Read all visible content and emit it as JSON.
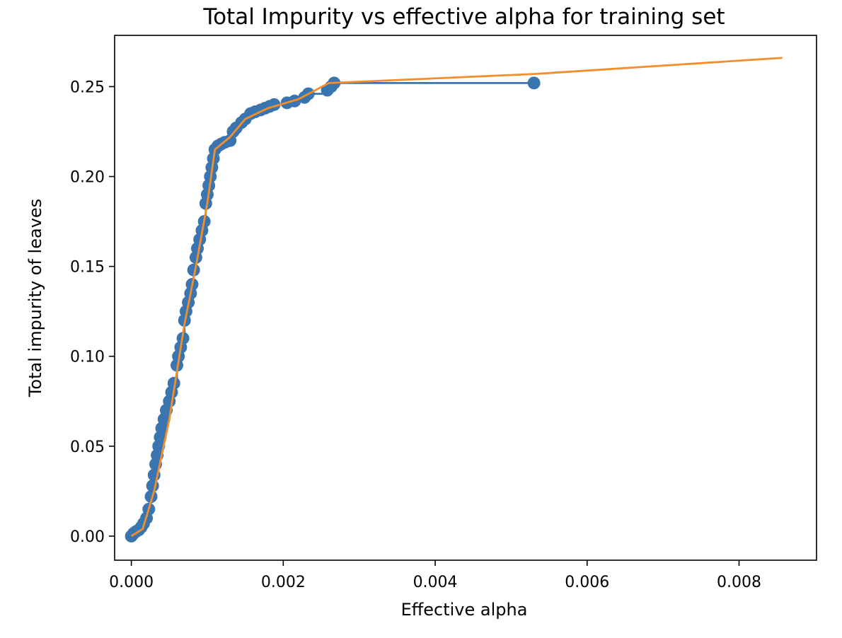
{
  "chart_data": {
    "type": "line",
    "title": "Total Impurity vs effective alpha for training set",
    "xlabel": "Effective alpha",
    "ylabel": "Total impurity of leaves",
    "xlim": [
      -0.00022,
      0.00902
    ],
    "ylim": [
      -0.0134,
      0.2785
    ],
    "grid": false,
    "legend": "none",
    "x_ticks": [
      0.0,
      0.002,
      0.004,
      0.006,
      0.008
    ],
    "x_tick_labels": [
      "0.000",
      "0.002",
      "0.004",
      "0.006",
      "0.008"
    ],
    "y_ticks": [
      0.0,
      0.05,
      0.1,
      0.15,
      0.2,
      0.25
    ],
    "y_tick_labels": [
      "0.00",
      "0.05",
      "0.10",
      "0.15",
      "0.20",
      "0.25"
    ],
    "series": [
      {
        "marker": "o",
        "drawstyle": "steps-post",
        "color": "#3a75b0",
        "x": [
          0.0,
          3e-05,
          6e-05,
          0.0001,
          0.00013,
          0.00016,
          0.0002,
          0.00023,
          0.00026,
          0.00028,
          0.0003,
          0.00032,
          0.00034,
          0.00036,
          0.00038,
          0.0004,
          0.00043,
          0.00046,
          0.0005,
          0.00053,
          0.00056,
          0.0006,
          0.00062,
          0.00065,
          0.00068,
          0.0007,
          0.00072,
          0.00075,
          0.00078,
          0.0008,
          0.00082,
          0.00085,
          0.00087,
          0.0009,
          0.00093,
          0.00096,
          0.00098,
          0.001,
          0.00102,
          0.00104,
          0.00106,
          0.00108,
          0.0011,
          0.00114,
          0.00118,
          0.00123,
          0.0013,
          0.00134,
          0.00138,
          0.00145,
          0.0015,
          0.00157,
          0.00163,
          0.0017,
          0.00176,
          0.00182,
          0.00188,
          0.00205,
          0.00215,
          0.00228,
          0.00233,
          0.00258,
          0.00263,
          0.00267,
          0.0053
        ],
        "y": [
          0.0,
          0.0015,
          0.0025,
          0.0035,
          0.005,
          0.007,
          0.01,
          0.015,
          0.022,
          0.028,
          0.034,
          0.04,
          0.045,
          0.05,
          0.055,
          0.06,
          0.065,
          0.07,
          0.075,
          0.08,
          0.085,
          0.095,
          0.1,
          0.105,
          0.11,
          0.12,
          0.125,
          0.13,
          0.135,
          0.14,
          0.148,
          0.155,
          0.16,
          0.165,
          0.17,
          0.175,
          0.185,
          0.19,
          0.195,
          0.2,
          0.205,
          0.21,
          0.215,
          0.217,
          0.218,
          0.219,
          0.22,
          0.225,
          0.227,
          0.23,
          0.232,
          0.235,
          0.236,
          0.237,
          0.238,
          0.239,
          0.24,
          0.241,
          0.242,
          0.244,
          0.246,
          0.248,
          0.25,
          0.252,
          0.252
        ]
      },
      {
        "marker": "none",
        "color": "#f28e2b",
        "x": [
          0.0,
          0.00015,
          0.0003,
          0.0005,
          0.0007,
          0.00085,
          0.001,
          0.0011,
          0.0013,
          0.0015,
          0.0018,
          0.0022,
          0.0026,
          0.0053,
          0.00857
        ],
        "y": [
          0.0,
          0.004,
          0.025,
          0.065,
          0.118,
          0.15,
          0.185,
          0.215,
          0.222,
          0.232,
          0.238,
          0.243,
          0.252,
          0.257,
          0.266
        ]
      }
    ]
  }
}
